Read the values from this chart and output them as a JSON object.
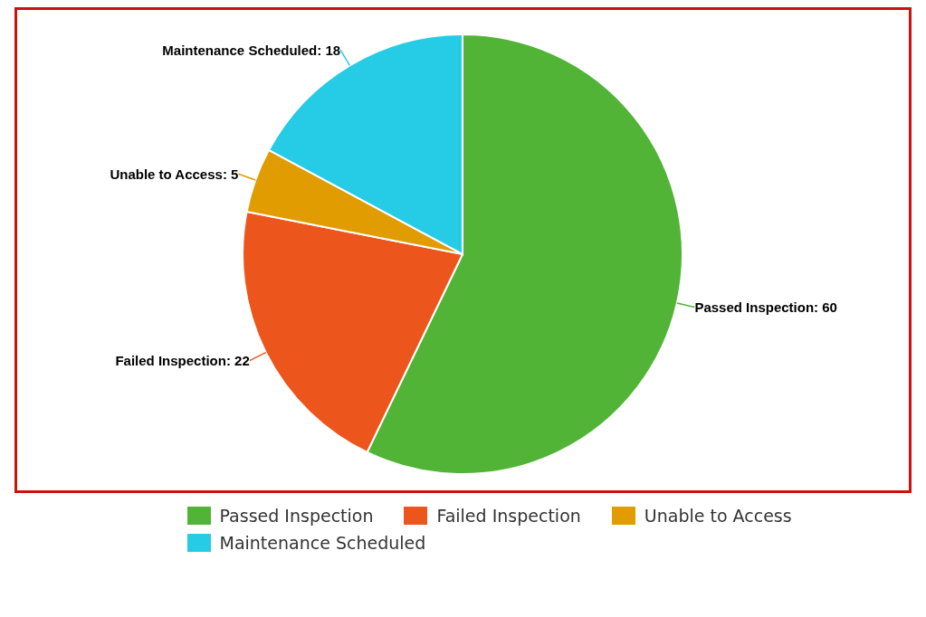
{
  "chart_data": {
    "type": "pie",
    "categories": [
      "Passed Inspection",
      "Failed Inspection",
      "Unable to Access",
      "Maintenance Scheduled"
    ],
    "values": [
      60,
      22,
      5,
      18
    ],
    "value_labels": [
      "Passed Inspection: 60",
      "Failed Inspection: 22",
      "Unable to Access: 5",
      "Maintenance Scheduled: 18"
    ],
    "colors": [
      "#52b436",
      "#ec561d",
      "#e09c00",
      "#26cbe5"
    ],
    "legend": "bottom"
  }
}
